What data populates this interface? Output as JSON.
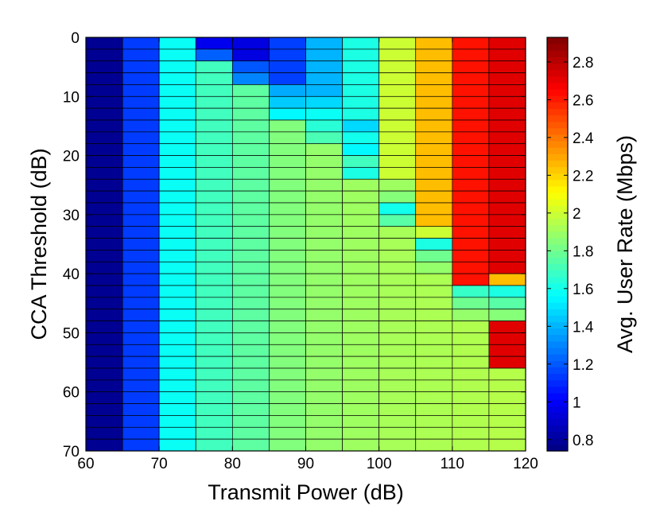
{
  "chart_data": {
    "type": "heatmap",
    "xlabel": "Transmit Power (dB)",
    "ylabel": "CCA Threshold (dB)",
    "colorbar_label": "Avg. User Rate (Mbps)",
    "x_ticks": [
      60,
      70,
      80,
      90,
      100,
      110,
      120
    ],
    "y_ticks": [
      0,
      10,
      20,
      30,
      40,
      50,
      60,
      70
    ],
    "colorbar_ticks": [
      0.8,
      1,
      1.2,
      1.4,
      1.6,
      1.8,
      2,
      2.2,
      2.4,
      2.6,
      2.8
    ],
    "xlim": [
      60,
      120
    ],
    "ylim": [
      0,
      70
    ],
    "clim": [
      0.74,
      2.93
    ],
    "colormap": "jet",
    "x_edges": [
      60,
      65,
      70,
      75,
      80,
      85,
      90,
      95,
      100,
      105,
      110,
      115,
      120
    ],
    "row_height": 2,
    "column_segments": [
      [
        {
          "from": 0,
          "to": 70,
          "value": 0.78
        }
      ],
      [
        {
          "from": 0,
          "to": 70,
          "value": 1.14
        }
      ],
      [
        {
          "from": 0,
          "to": 70,
          "value": 1.58
        }
      ],
      [
        {
          "from": 0,
          "to": 2,
          "value": 0.98
        },
        {
          "from": 2,
          "to": 4,
          "value": 1.22
        },
        {
          "from": 4,
          "to": 70,
          "value": 1.7
        }
      ],
      [
        {
          "from": 0,
          "to": 6,
          "value": 0.95
        },
        {
          "from": 6,
          "to": 70,
          "value": 1.76
        }
      ],
      [
        {
          "from": 0,
          "to": 10,
          "value": 1.15
        },
        {
          "from": 10,
          "to": 70,
          "value": 1.84
        }
      ],
      [
        {
          "from": 0,
          "to": 14,
          "value": 1.4
        },
        {
          "from": 14,
          "to": 70,
          "value": 1.88
        }
      ],
      [
        {
          "from": 0,
          "to": 24,
          "value": 1.62
        },
        {
          "from": 24,
          "to": 70,
          "value": 1.9
        }
      ],
      [
        {
          "from": 0,
          "to": 32,
          "value": 2.0
        },
        {
          "from": 32,
          "to": 70,
          "value": 1.92
        }
      ],
      [
        {
          "from": 0,
          "to": 40,
          "value": 2.25
        },
        {
          "from": 40,
          "to": 70,
          "value": 1.93
        }
      ],
      [
        {
          "from": 0,
          "to": 48,
          "value": 2.62
        },
        {
          "from": 48,
          "to": 70,
          "value": 1.94
        }
      ],
      [
        {
          "from": 0,
          "to": 55,
          "value": 2.72
        },
        {
          "from": 55,
          "to": 70,
          "value": 1.95
        }
      ]
    ],
    "overrides": [
      {
        "col": 4,
        "row": 2,
        "value": 1.2
      },
      {
        "col": 4,
        "row": 3,
        "value": 1.3
      },
      {
        "col": 5,
        "row": 4,
        "value": 1.38
      },
      {
        "col": 5,
        "row": 5,
        "value": 1.45
      },
      {
        "col": 5,
        "row": 6,
        "value": 1.55
      },
      {
        "col": 6,
        "row": 5,
        "value": 1.48
      },
      {
        "col": 6,
        "row": 6,
        "value": 1.58
      },
      {
        "col": 6,
        "row": 7,
        "value": 1.65
      },
      {
        "col": 6,
        "row": 8,
        "value": 1.72
      },
      {
        "col": 7,
        "row": 7,
        "value": 1.48
      },
      {
        "col": 7,
        "row": 8,
        "value": 1.6
      },
      {
        "col": 7,
        "row": 9,
        "value": 1.55
      },
      {
        "col": 7,
        "row": 10,
        "value": 1.7
      },
      {
        "col": 7,
        "row": 11,
        "value": 1.62
      },
      {
        "col": 8,
        "row": 12,
        "value": 1.9
      },
      {
        "col": 8,
        "row": 13,
        "value": 1.85
      },
      {
        "col": 8,
        "row": 14,
        "value": 1.6
      },
      {
        "col": 8,
        "row": 15,
        "value": 1.75
      },
      {
        "col": 9,
        "row": 16,
        "value": 2.0
      },
      {
        "col": 9,
        "row": 17,
        "value": 1.62
      },
      {
        "col": 9,
        "row": 18,
        "value": 1.8
      },
      {
        "col": 9,
        "row": 19,
        "value": 1.88
      },
      {
        "col": 10,
        "row": 21,
        "value": 1.68
      },
      {
        "col": 10,
        "row": 22,
        "value": 1.8
      },
      {
        "col": 10,
        "row": 23,
        "value": 1.88
      },
      {
        "col": 11,
        "row": 20,
        "value": 2.25
      },
      {
        "col": 11,
        "row": 21,
        "value": 1.62
      },
      {
        "col": 11,
        "row": 22,
        "value": 1.75
      },
      {
        "col": 11,
        "row": 23,
        "value": 1.85
      }
    ]
  }
}
